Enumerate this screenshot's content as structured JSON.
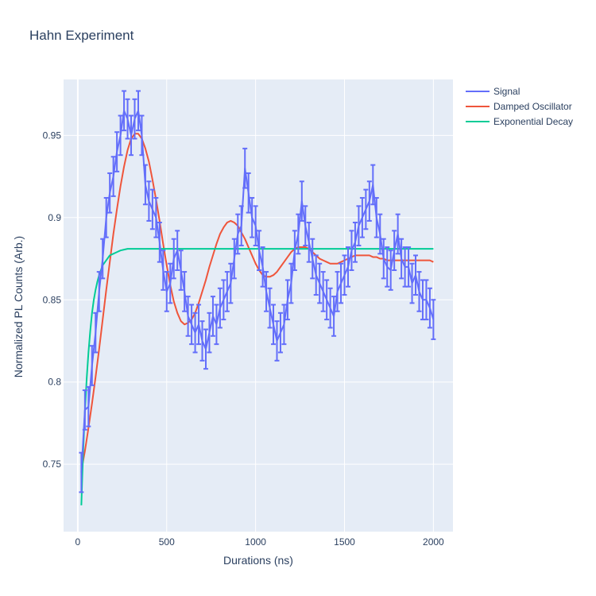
{
  "chart_data": {
    "type": "line",
    "title": "Hahn Experiment",
    "xlabel": "Durations (ns)",
    "ylabel": "Normalized PL Counts (Arb.)",
    "xlim": [
      -80,
      2110
    ],
    "ylim": [
      0.709,
      0.984
    ],
    "xticks": [
      0,
      500,
      1000,
      1500,
      2000
    ],
    "xtick_labels": [
      "0",
      "500",
      "1000",
      "1500",
      "2000"
    ],
    "yticks": [
      0.75,
      0.8,
      0.85,
      0.9,
      0.95
    ],
    "ytick_labels": [
      "0.75",
      "0.8",
      "0.85",
      "0.9",
      "0.95"
    ],
    "grid": true,
    "plot_bgcolor": "#E5ECF6",
    "legend_position": "top-right",
    "series": [
      {
        "name": "Signal",
        "color": "#636EFA",
        "error_bar": 0.012,
        "x": [
          20,
          40,
          60,
          80,
          100,
          120,
          140,
          160,
          180,
          200,
          220,
          240,
          260,
          280,
          300,
          320,
          340,
          360,
          380,
          400,
          420,
          440,
          460,
          480,
          500,
          520,
          540,
          560,
          580,
          600,
          620,
          640,
          660,
          680,
          700,
          720,
          740,
          760,
          780,
          800,
          820,
          840,
          860,
          880,
          900,
          920,
          940,
          960,
          980,
          1000,
          1020,
          1040,
          1060,
          1080,
          1100,
          1120,
          1140,
          1160,
          1180,
          1200,
          1220,
          1240,
          1260,
          1280,
          1300,
          1320,
          1340,
          1360,
          1380,
          1400,
          1420,
          1440,
          1460,
          1480,
          1500,
          1520,
          1540,
          1560,
          1580,
          1600,
          1620,
          1640,
          1660,
          1680,
          1700,
          1720,
          1740,
          1760,
          1780,
          1800,
          1820,
          1840,
          1860,
          1880,
          1900,
          1920,
          1940,
          1960,
          1980,
          2000
        ],
        "y": [
          0.745,
          0.783,
          0.785,
          0.81,
          0.83,
          0.855,
          0.875,
          0.9,
          0.915,
          0.925,
          0.94,
          0.95,
          0.965,
          0.96,
          0.95,
          0.96,
          0.965,
          0.95,
          0.92,
          0.91,
          0.905,
          0.9,
          0.885,
          0.868,
          0.855,
          0.86,
          0.875,
          0.88,
          0.868,
          0.855,
          0.84,
          0.835,
          0.83,
          0.835,
          0.825,
          0.82,
          0.83,
          0.84,
          0.835,
          0.845,
          0.85,
          0.855,
          0.86,
          0.875,
          0.89,
          0.895,
          0.93,
          0.915,
          0.9,
          0.895,
          0.88,
          0.87,
          0.855,
          0.845,
          0.835,
          0.825,
          0.83,
          0.835,
          0.85,
          0.86,
          0.88,
          0.89,
          0.91,
          0.895,
          0.885,
          0.875,
          0.865,
          0.86,
          0.855,
          0.85,
          0.845,
          0.84,
          0.855,
          0.86,
          0.865,
          0.87,
          0.88,
          0.885,
          0.895,
          0.9,
          0.905,
          0.91,
          0.92,
          0.9,
          0.89,
          0.875,
          0.87,
          0.868,
          0.88,
          0.89,
          0.875,
          0.87,
          0.87,
          0.86,
          0.865,
          0.855,
          0.85,
          0.85,
          0.845,
          0.838
        ]
      },
      {
        "name": "Damped Oscillator",
        "color": "#EF553B",
        "x": [
          20,
          40,
          60,
          80,
          100,
          120,
          140,
          160,
          180,
          200,
          220,
          240,
          260,
          280,
          300,
          320,
          340,
          360,
          380,
          400,
          420,
          440,
          460,
          480,
          500,
          520,
          540,
          560,
          580,
          600,
          620,
          640,
          660,
          680,
          700,
          720,
          740,
          760,
          780,
          800,
          820,
          840,
          860,
          880,
          900,
          920,
          940,
          960,
          980,
          1000,
          1020,
          1040,
          1060,
          1080,
          1100,
          1120,
          1140,
          1160,
          1180,
          1200,
          1220,
          1240,
          1260,
          1280,
          1300,
          1320,
          1340,
          1360,
          1380,
          1400,
          1420,
          1440,
          1460,
          1480,
          1500,
          1520,
          1540,
          1560,
          1580,
          1600,
          1620,
          1640,
          1660,
          1680,
          1700,
          1720,
          1740,
          1760,
          1780,
          1800,
          1820,
          1840,
          1860,
          1880,
          1900,
          1920,
          1940,
          1960,
          1980,
          2000
        ],
        "y": [
          0.746,
          0.758,
          0.772,
          0.787,
          0.803,
          0.82,
          0.838,
          0.856,
          0.873,
          0.89,
          0.905,
          0.919,
          0.931,
          0.941,
          0.948,
          0.951,
          0.951,
          0.948,
          0.942,
          0.934,
          0.923,
          0.911,
          0.898,
          0.884,
          0.871,
          0.859,
          0.849,
          0.842,
          0.837,
          0.835,
          0.836,
          0.838,
          0.842,
          0.848,
          0.855,
          0.862,
          0.87,
          0.877,
          0.884,
          0.89,
          0.894,
          0.897,
          0.898,
          0.897,
          0.895,
          0.891,
          0.887,
          0.882,
          0.877,
          0.872,
          0.868,
          0.865,
          0.864,
          0.864,
          0.865,
          0.867,
          0.87,
          0.873,
          0.876,
          0.879,
          0.881,
          0.882,
          0.882,
          0.882,
          0.881,
          0.879,
          0.877,
          0.875,
          0.874,
          0.873,
          0.872,
          0.872,
          0.872,
          0.873,
          0.874,
          0.875,
          0.876,
          0.877,
          0.877,
          0.877,
          0.877,
          0.877,
          0.876,
          0.876,
          0.875,
          0.875,
          0.874,
          0.874,
          0.874,
          0.874,
          0.874,
          0.874,
          0.874,
          0.874,
          0.874,
          0.874,
          0.874,
          0.874,
          0.874,
          0.873
        ]
      },
      {
        "name": "Exponential Decay",
        "color": "#00CC96",
        "x": [
          20,
          25,
          30,
          35,
          40,
          50,
          60,
          70,
          80,
          90,
          100,
          110,
          120,
          140,
          160,
          180,
          200,
          220,
          240,
          260,
          280,
          300,
          320,
          340,
          360,
          380,
          400,
          450,
          500,
          600,
          700,
          800,
          900,
          1000,
          1200,
          1400,
          1600,
          1800,
          2000
        ],
        "y": [
          0.725,
          0.742,
          0.757,
          0.77,
          0.782,
          0.802,
          0.818,
          0.831,
          0.842,
          0.85,
          0.856,
          0.861,
          0.865,
          0.871,
          0.874,
          0.877,
          0.878,
          0.879,
          0.88,
          0.8805,
          0.881,
          0.881,
          0.881,
          0.881,
          0.881,
          0.881,
          0.881,
          0.881,
          0.881,
          0.881,
          0.881,
          0.881,
          0.881,
          0.881,
          0.881,
          0.881,
          0.881,
          0.881,
          0.881
        ]
      }
    ]
  }
}
